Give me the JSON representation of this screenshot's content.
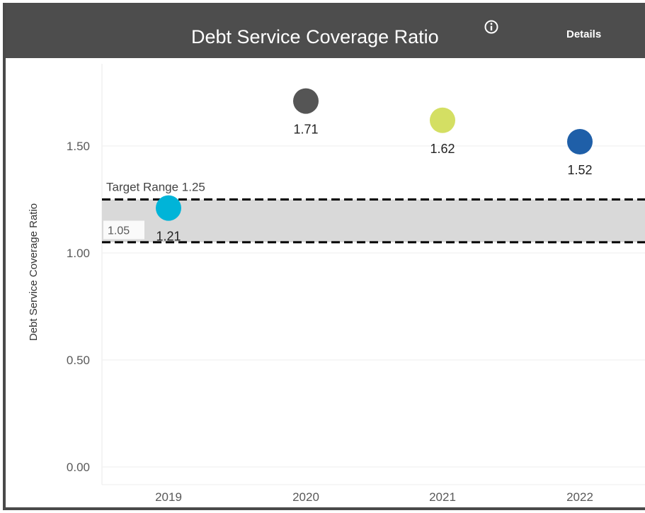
{
  "header": {
    "title": "Debt Service Coverage Ratio",
    "details_label": "Details",
    "info_icon": "info-circle-icon",
    "background": "#4d4d4d"
  },
  "chart_data": {
    "type": "scatter",
    "title": "Debt Service Coverage Ratio",
    "xlabel": "",
    "ylabel": "Debt Service Coverage Ratio",
    "categories": [
      "2019",
      "2020",
      "2021",
      "2022"
    ],
    "values": [
      1.21,
      1.71,
      1.62,
      1.52
    ],
    "point_colors": [
      "#00b4d8",
      "#555555",
      "#d4df63",
      "#1f5fa8"
    ],
    "value_labels": [
      "1.21",
      "1.71",
      "1.62",
      "1.52"
    ],
    "ylim": [
      0,
      1.8
    ],
    "y_ticks": [
      0.0,
      0.5,
      1.0,
      1.5
    ],
    "y_tick_labels": [
      "0.00",
      "0.50",
      "1.00",
      "1.50"
    ],
    "grid": true,
    "target_band": {
      "low": 1.05,
      "high": 1.25,
      "upper_label": "Target Range 1.25",
      "lower_label": "1.05",
      "band_color": "#d9d9d9"
    }
  }
}
